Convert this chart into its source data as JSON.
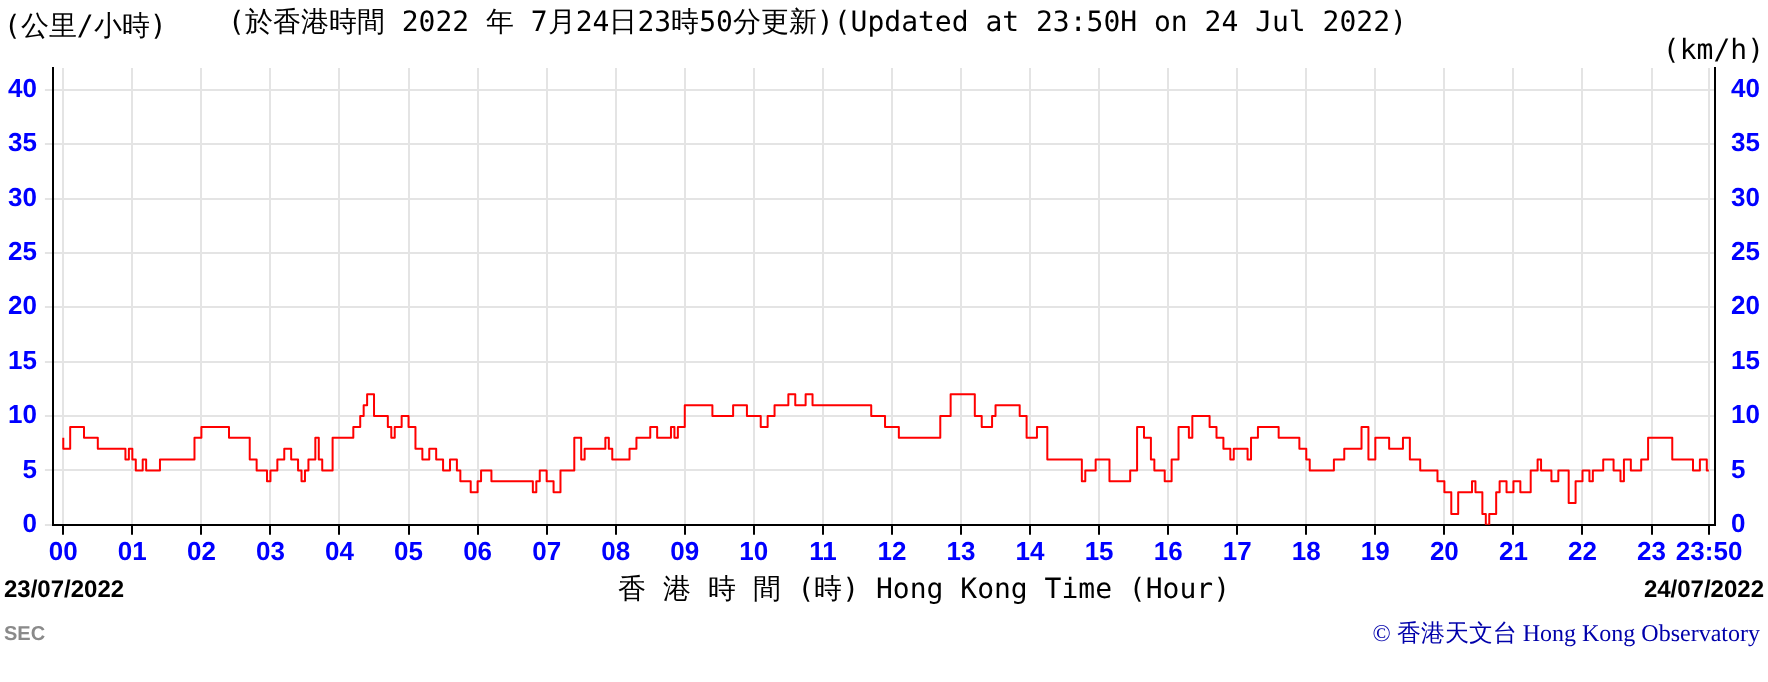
{
  "chart_data": {
    "type": "step",
    "title": "(於香港時間 2022 年 7月24日23時50分更新)(Updated at 23:50H on 24 Jul 2022)",
    "ylabel": "(公里/小時)",
    "y2label": "(km/h)",
    "xlabel": "香 港 時 間 (時) Hong Kong Time (Hour)",
    "annotations": [
      "23/07/2022",
      "24/07/2022",
      "SEC",
      "© 香港天文台 Hong Kong Observatory"
    ],
    "xlim": [
      -0.15,
      23.92
    ],
    "ylim": [
      0,
      42
    ],
    "y2lim": [
      0,
      42
    ],
    "xticks": [
      {
        "value": 0,
        "label": "00"
      },
      {
        "value": 1,
        "label": "01"
      },
      {
        "value": 2,
        "label": "02"
      },
      {
        "value": 3,
        "label": "03"
      },
      {
        "value": 4,
        "label": "04"
      },
      {
        "value": 5,
        "label": "05"
      },
      {
        "value": 6,
        "label": "06"
      },
      {
        "value": 7,
        "label": "07"
      },
      {
        "value": 8,
        "label": "08"
      },
      {
        "value": 9,
        "label": "09"
      },
      10,
      11,
      12,
      13,
      14,
      15,
      16,
      17,
      18,
      19,
      20,
      21,
      22,
      23,
      {
        "value": 23.8333,
        "label": "23:50"
      }
    ],
    "yticks": [
      0,
      5,
      10,
      15,
      20,
      25,
      30,
      35,
      40
    ],
    "y2ticks": [
      0,
      5,
      10,
      15,
      20,
      25,
      30,
      35,
      40
    ],
    "grid": true,
    "legend": false,
    "series": [
      {
        "color": "#ff0000",
        "x": [
          0,
          0.1,
          0.3,
          0.5,
          0.9,
          0.95,
          1.0,
          1.05,
          1.15,
          1.2,
          1.4,
          1.9,
          2.0,
          2.4,
          2.7,
          2.8,
          2.95,
          3.0,
          3.1,
          3.2,
          3.3,
          3.4,
          3.45,
          3.5,
          3.55,
          3.65,
          3.7,
          3.75,
          3.9,
          4.2,
          4.3,
          4.35,
          4.4,
          4.5,
          4.7,
          4.75,
          4.8,
          4.9,
          5.0,
          5.1,
          5.2,
          5.3,
          5.4,
          5.5,
          5.6,
          5.7,
          5.75,
          5.9,
          6.0,
          6.05,
          6.2,
          6.8,
          6.85,
          6.9,
          7.0,
          7.1,
          7.2,
          7.4,
          7.5,
          7.55,
          7.85,
          7.9,
          7.95,
          8.2,
          8.3,
          8.5,
          8.6,
          8.8,
          8.85,
          8.9,
          9.0,
          9.4,
          9.7,
          9.9,
          10.1,
          10.2,
          10.3,
          10.5,
          10.6,
          10.75,
          10.85,
          11.7,
          11.9,
          12.1,
          12.7,
          12.85,
          13.2,
          13.3,
          13.45,
          13.5,
          13.85,
          13.95,
          14.1,
          14.25,
          14.75,
          14.8,
          14.95,
          15.15,
          15.45,
          15.55,
          15.65,
          15.75,
          15.8,
          15.95,
          16.05,
          16.15,
          16.3,
          16.35,
          16.6,
          16.7,
          16.8,
          16.9,
          16.95,
          17.15,
          17.2,
          17.3,
          17.6,
          17.9,
          18.0,
          18.05,
          18.4,
          18.55,
          18.8,
          18.9,
          19.0,
          19.2,
          19.4,
          19.5,
          19.65,
          19.9,
          20.0,
          20.1,
          20.2,
          20.4,
          20.45,
          20.55,
          20.6,
          20.65,
          20.75,
          20.8,
          20.9,
          21.0,
          21.1,
          21.25,
          21.35,
          21.4,
          21.55,
          21.65,
          21.8,
          21.9,
          22.0,
          22.1,
          22.15,
          22.3,
          22.45,
          22.55,
          22.6,
          22.7,
          22.85,
          22.95,
          23.3,
          23.6,
          23.7,
          23.8,
          23.83
        ],
        "values": [
          8,
          7,
          9,
          8,
          7,
          6,
          7,
          6,
          5,
          6,
          5,
          6,
          8,
          9,
          8,
          6,
          5,
          4,
          5,
          6,
          7,
          6,
          5,
          4,
          5,
          6,
          8,
          6,
          5,
          8,
          9,
          10,
          11,
          12,
          10,
          9,
          8,
          9,
          10,
          9,
          7,
          6,
          7,
          6,
          5,
          6,
          5,
          4,
          3,
          4,
          5,
          4,
          3,
          4,
          5,
          4,
          3,
          5,
          8,
          6,
          7,
          8,
          7,
          6,
          7,
          8,
          9,
          8,
          9,
          8,
          9,
          11,
          10,
          11,
          10,
          9,
          10,
          11,
          12,
          11,
          12,
          11,
          10,
          9,
          8,
          10,
          12,
          10,
          9,
          10,
          11,
          10,
          8,
          9,
          6,
          4,
          5,
          6,
          4,
          5,
          9,
          8,
          6,
          5,
          4,
          6,
          9,
          8,
          10,
          9,
          8,
          7,
          6,
          7,
          6,
          8,
          9,
          8,
          7,
          6,
          5,
          6,
          7,
          9,
          6,
          8,
          7,
          8,
          6,
          5,
          4,
          3,
          1,
          3,
          4,
          3,
          1,
          0,
          1,
          3,
          4,
          3,
          4,
          3,
          5,
          6,
          5,
          4,
          5,
          2,
          4,
          5,
          4,
          5,
          6,
          5,
          4,
          6,
          5,
          6,
          8,
          6,
          5,
          6,
          5
        ]
      }
    ]
  }
}
